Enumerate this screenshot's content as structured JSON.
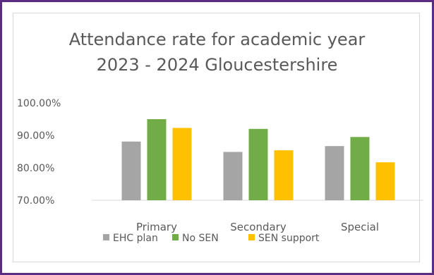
{
  "chart_data": {
    "type": "bar",
    "title_lines": [
      "Attendance rate for academic year",
      "2023 - 2024 Gloucestershire"
    ],
    "categories": [
      "Primary",
      "Secondary",
      "Special"
    ],
    "series": [
      {
        "name": "EHC plan",
        "values": [
          88.1,
          84.9,
          86.7
        ],
        "color": "#a5a5a5"
      },
      {
        "name": "No SEN",
        "values": [
          95.0,
          92.0,
          89.5
        ],
        "color": "#70ad47"
      },
      {
        "name": "SEN support",
        "values": [
          92.3,
          85.4,
          81.7
        ],
        "color": "#ffc000"
      }
    ],
    "yticks": [
      "70.00%",
      "80.00%",
      "90.00%",
      "100.00%"
    ],
    "ylim": [
      70,
      100
    ],
    "grid": false,
    "legend": "bottom"
  }
}
